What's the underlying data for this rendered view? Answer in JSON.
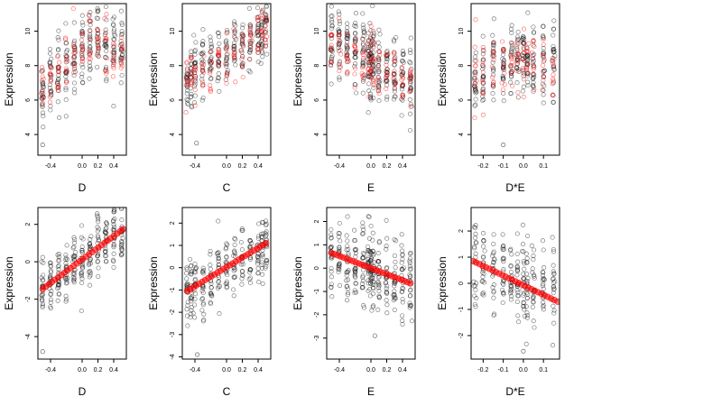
{
  "colors": {
    "black_points": "#000000",
    "red_points": "#ff0000"
  },
  "chart_data": [
    {
      "type": "scatter",
      "row": 1,
      "col": 1,
      "xlabel": "D",
      "ylabel": "Expression",
      "xlim": [
        -0.56,
        0.56
      ],
      "ylim": [
        2.8,
        11.6
      ],
      "xticks": [
        -0.4,
        0.0,
        0.2,
        0.4
      ],
      "xtick_labels": [
        "-0.4",
        "0.0",
        "0.2",
        "0.4"
      ],
      "yticks": [
        4,
        6,
        8,
        10
      ],
      "ytick_labels": [
        "4",
        "6",
        "8",
        "10"
      ],
      "series": [
        {
          "color": "black",
          "x_values": [
            -0.5,
            -0.4,
            -0.3,
            -0.2,
            -0.1,
            0.0,
            0.1,
            0.2,
            0.3,
            0.4,
            0.5
          ],
          "y_trend": [
            6.6,
            7.0,
            7.6,
            8.0,
            8.5,
            8.9,
            9.2,
            9.5,
            9.2,
            9.0,
            8.8
          ],
          "y_spread": 1.3,
          "points_per_x": 22
        },
        {
          "color": "red",
          "x_values": [
            -0.5,
            -0.4,
            -0.3,
            -0.2,
            -0.1,
            0.0,
            0.1,
            0.2,
            0.3,
            0.4,
            0.5
          ],
          "y_trend": [
            6.7,
            7.2,
            7.6,
            8.1,
            8.5,
            8.9,
            9.3,
            9.5,
            9.0,
            8.7,
            8.5
          ],
          "y_spread": 1.0,
          "points_per_x": 10
        }
      ],
      "notable_points": [
        {
          "x": -0.5,
          "y": 3.4
        }
      ]
    },
    {
      "type": "scatter",
      "row": 1,
      "col": 2,
      "xlabel": "C",
      "ylabel": "Expression",
      "xlim": [
        -0.56,
        0.56
      ],
      "ylim": [
        2.8,
        11.6
      ],
      "xticks": [
        -0.4,
        0.0,
        0.2,
        0.4
      ],
      "xtick_labels": [
        "-0.4",
        "0.0",
        "0.2",
        "0.4"
      ],
      "yticks": [
        4,
        6,
        8,
        10
      ],
      "ytick_labels": [
        "4",
        "6",
        "8",
        "10"
      ],
      "series": [
        {
          "color": "black",
          "x_values": [
            -0.5,
            -0.45,
            -0.4,
            -0.3,
            -0.2,
            -0.1,
            0.0,
            0.1,
            0.2,
            0.3,
            0.4,
            0.45,
            0.5
          ],
          "y_trend": [
            7.0,
            7.4,
            7.6,
            7.9,
            8.2,
            8.4,
            8.6,
            8.9,
            9.2,
            9.5,
            9.8,
            10.2,
            10.5
          ],
          "y_spread": 1.1,
          "points_per_x": 20
        },
        {
          "color": "red",
          "x_values": [
            -0.5,
            -0.45,
            -0.4,
            -0.3,
            -0.2,
            -0.1,
            0.0,
            0.1,
            0.2,
            0.3,
            0.4,
            0.45,
            0.5
          ],
          "y_trend": [
            7.0,
            7.3,
            7.6,
            7.9,
            8.1,
            8.3,
            8.5,
            8.8,
            9.0,
            9.3,
            9.6,
            10.0,
            10.2
          ],
          "y_spread": 0.9,
          "points_per_x": 9
        }
      ],
      "notable_points": [
        {
          "x": -0.38,
          "y": 3.5
        }
      ]
    },
    {
      "type": "scatter",
      "row": 1,
      "col": 3,
      "xlabel": "E",
      "ylabel": "Expression",
      "xlim": [
        -0.56,
        0.56
      ],
      "ylim": [
        2.8,
        11.6
      ],
      "xticks": [
        -0.4,
        0.0,
        0.2,
        0.4
      ],
      "xtick_labels": [
        "-0.4",
        "0.0",
        "0.2",
        "0.4"
      ],
      "yticks": [
        4,
        6,
        8,
        10
      ],
      "ytick_labels": [
        "4",
        "6",
        "8",
        "10"
      ],
      "series": [
        {
          "color": "black",
          "x_values": [
            -0.5,
            -0.4,
            -0.3,
            -0.2,
            -0.1,
            -0.03,
            0.0,
            0.03,
            0.1,
            0.2,
            0.3,
            0.4,
            0.5
          ],
          "y_trend": [
            9.3,
            9.1,
            8.9,
            8.7,
            8.5,
            8.4,
            8.3,
            8.2,
            8.0,
            7.8,
            7.5,
            7.2,
            7.0
          ],
          "y_spread": 1.3,
          "points_per_x": 24
        },
        {
          "color": "red",
          "x_values": [
            -0.5,
            -0.4,
            -0.3,
            -0.2,
            -0.1,
            -0.03,
            0.0,
            0.03,
            0.1,
            0.2,
            0.3,
            0.4,
            0.5
          ],
          "y_trend": [
            9.3,
            9.0,
            8.8,
            8.6,
            8.4,
            8.3,
            8.2,
            8.1,
            7.9,
            7.7,
            7.4,
            7.1,
            6.9
          ],
          "y_spread": 1.0,
          "points_per_x": 10
        }
      ],
      "notable_points": []
    },
    {
      "type": "scatter",
      "row": 1,
      "col": 4,
      "xlabel": "D*E",
      "ylabel": "Expression",
      "xlim": [
        -0.26,
        0.18
      ],
      "ylim": [
        2.8,
        11.6
      ],
      "xticks": [
        -0.2,
        -0.1,
        0.0,
        0.1
      ],
      "xtick_labels": [
        "-0.2",
        "-0.1",
        "0.0",
        "0.1"
      ],
      "yticks": [
        4,
        6,
        8,
        10
      ],
      "ytick_labels": [
        "4",
        "6",
        "8",
        "10"
      ],
      "series": [
        {
          "color": "black",
          "x_values": [
            -0.24,
            -0.2,
            -0.15,
            -0.1,
            -0.06,
            -0.03,
            0.0,
            0.02,
            0.05,
            0.1,
            0.15
          ],
          "y_trend": [
            7.5,
            7.7,
            7.9,
            8.1,
            8.3,
            8.4,
            8.5,
            8.5,
            8.3,
            8.2,
            8.0
          ],
          "y_spread": 1.4,
          "points_per_x": 22
        },
        {
          "color": "red",
          "x_values": [
            -0.24,
            -0.2,
            -0.15,
            -0.1,
            -0.06,
            -0.03,
            0.0,
            0.02,
            0.05,
            0.1,
            0.15
          ],
          "y_trend": [
            7.3,
            7.6,
            7.8,
            8.0,
            8.2,
            8.3,
            8.4,
            8.4,
            8.2,
            8.1,
            7.9
          ],
          "y_spread": 1.1,
          "points_per_x": 10
        }
      ],
      "notable_points": [
        {
          "x": -0.1,
          "y": 3.4
        }
      ]
    },
    {
      "type": "scatter",
      "row": 2,
      "col": 1,
      "xlabel": "D",
      "ylabel": "Expression",
      "xlim": [
        -0.56,
        0.56
      ],
      "ylim": [
        -5.2,
        2.9
      ],
      "xticks": [
        -0.4,
        0.0,
        0.2,
        0.4
      ],
      "xtick_labels": [
        "-0.4",
        "0.0",
        "0.2",
        "0.4"
      ],
      "yticks": [
        -4,
        -2,
        0,
        2
      ],
      "ytick_labels": [
        "-4",
        "-2",
        "0",
        "2"
      ],
      "series": [
        {
          "color": "black",
          "x_values": [
            -0.5,
            -0.4,
            -0.3,
            -0.2,
            -0.1,
            0.0,
            0.1,
            0.2,
            0.3,
            0.4,
            0.5
          ],
          "y_trend": [
            -1.4,
            -1.1,
            -0.8,
            -0.5,
            -0.2,
            0.1,
            0.4,
            0.7,
            1.0,
            1.3,
            1.6
          ],
          "y_spread": 1.0,
          "points_per_x": 24
        }
      ],
      "fit_line": {
        "color": "red",
        "x": [
          -0.5,
          0.52
        ],
        "y": [
          -1.45,
          1.75
        ]
      },
      "notable_points": [
        {
          "x": -0.5,
          "y": -4.8
        }
      ]
    },
    {
      "type": "scatter",
      "row": 2,
      "col": 2,
      "xlabel": "C",
      "ylabel": "Expression",
      "xlim": [
        -0.56,
        0.56
      ],
      "ylim": [
        -4.1,
        2.7
      ],
      "xticks": [
        -0.4,
        0.0,
        0.2,
        0.4
      ],
      "xtick_labels": [
        "-0.4",
        "0.0",
        "0.2",
        "0.4"
      ],
      "yticks": [
        -4,
        -3,
        -2,
        -1,
        0,
        1,
        2
      ],
      "ytick_labels": [
        "-4",
        "-3",
        "-2",
        "-1",
        "0",
        "1",
        "2"
      ],
      "series": [
        {
          "color": "black",
          "x_values": [
            -0.5,
            -0.45,
            -0.4,
            -0.3,
            -0.2,
            -0.1,
            0.0,
            0.1,
            0.2,
            0.3,
            0.4,
            0.45,
            0.5
          ],
          "y_trend": [
            -1.0,
            -0.9,
            -0.8,
            -0.6,
            -0.4,
            -0.2,
            0.0,
            0.2,
            0.4,
            0.6,
            0.8,
            0.95,
            1.1
          ],
          "y_spread": 0.9,
          "points_per_x": 20
        }
      ],
      "fit_line": {
        "color": "red",
        "x": [
          -0.5,
          0.5
        ],
        "y": [
          -1.05,
          1.1
        ]
      },
      "notable_points": [
        {
          "x": -0.37,
          "y": -3.9
        }
      ]
    },
    {
      "type": "scatter",
      "row": 2,
      "col": 3,
      "xlabel": "E",
      "ylabel": "Expression",
      "xlim": [
        -0.56,
        0.56
      ],
      "ylim": [
        -3.9,
        2.6
      ],
      "xticks": [
        -0.4,
        0.0,
        0.2,
        0.4
      ],
      "xtick_labels": [
        "-0.4",
        "0.0",
        "0.2",
        "0.4"
      ],
      "yticks": [
        -3,
        -2,
        -1,
        0,
        1,
        2
      ],
      "ytick_labels": [
        "-3",
        "-2",
        "-1",
        "0",
        "1",
        "2"
      ],
      "series": [
        {
          "color": "black",
          "x_values": [
            -0.5,
            -0.4,
            -0.3,
            -0.2,
            -0.1,
            -0.03,
            0.0,
            0.03,
            0.1,
            0.2,
            0.3,
            0.4,
            0.5
          ],
          "y_trend": [
            0.6,
            0.5,
            0.35,
            0.25,
            0.1,
            0.05,
            0.0,
            -0.05,
            -0.1,
            -0.25,
            -0.35,
            -0.5,
            -0.6
          ],
          "y_spread": 1.0,
          "points_per_x": 24
        }
      ],
      "fit_line": {
        "color": "red",
        "x": [
          -0.5,
          0.5
        ],
        "y": [
          0.65,
          -0.65
        ]
      },
      "notable_points": [
        {
          "x": 0.05,
          "y": -2.9
        }
      ]
    },
    {
      "type": "scatter",
      "row": 2,
      "col": 4,
      "xlabel": "D*E",
      "ylabel": "Expression",
      "xlim": [
        -0.26,
        0.18
      ],
      "ylim": [
        -2.9,
        2.9
      ],
      "xticks": [
        -0.2,
        -0.1,
        0.0,
        0.1
      ],
      "xtick_labels": [
        "-0.2",
        "-0.1",
        "0.0",
        "0.1"
      ],
      "yticks": [
        -2,
        -1,
        0,
        1,
        2
      ],
      "ytick_labels": [
        "-2",
        "-1",
        "0",
        "1",
        "2"
      ],
      "series": [
        {
          "color": "black",
          "x_values": [
            -0.24,
            -0.2,
            -0.15,
            -0.1,
            -0.06,
            -0.03,
            0.0,
            0.02,
            0.05,
            0.1,
            0.15
          ],
          "y_trend": [
            0.8,
            0.65,
            0.5,
            0.35,
            0.2,
            0.1,
            0.0,
            -0.05,
            -0.15,
            -0.3,
            -0.5
          ],
          "y_spread": 1.0,
          "points_per_x": 22
        }
      ],
      "fit_line": {
        "color": "red",
        "x": [
          -0.25,
          0.17
        ],
        "y": [
          0.85,
          -0.7
        ]
      },
      "notable_points": [
        {
          "x": 0.0,
          "y": -2.6
        }
      ]
    }
  ]
}
